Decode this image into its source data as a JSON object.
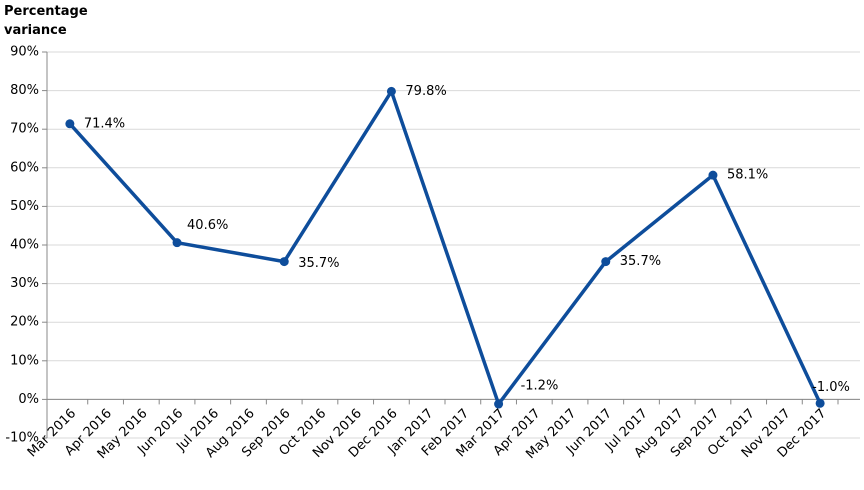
{
  "chart_data": {
    "type": "line",
    "y_label": "Percentage variance",
    "categories": [
      "Mar 2016",
      "Apr 2016",
      "May 2016",
      "Jun 2016",
      "Jul 2016",
      "Aug 2016",
      "Sep 2016",
      "Oct 2016",
      "Nov 2016",
      "Dec 2016",
      "Jan 2017",
      "Feb 2017",
      "Mar 2017",
      "Apr 2017",
      "May 2017",
      "Jun 2017",
      "Jul 2017",
      "Aug 2017",
      "Sep 2017",
      "Oct 2017",
      "Nov 2017",
      "Dec 2017"
    ],
    "series": [
      {
        "color": "#0e4d9b",
        "x": [
          "Mar 2016",
          "Jun 2016",
          "Sep 2016",
          "Dec 2016",
          "Mar 2017",
          "Jun 2017",
          "Sep 2017",
          "Dec 2017"
        ],
        "values": [
          71.4,
          40.6,
          35.7,
          79.8,
          -1.2,
          35.7,
          58.1,
          -1.0
        ],
        "value_labels": [
          "71.4%",
          "40.6%",
          "35.7%",
          "79.8%",
          "-1.2%",
          "35.7%",
          "58.1%",
          "-1.0%"
        ]
      }
    ],
    "ylim": [
      -10,
      90
    ],
    "yticks": [
      {
        "value": -10,
        "label": "-10%"
      },
      {
        "value": 0,
        "label": "0%"
      },
      {
        "value": 10,
        "label": "10%"
      },
      {
        "value": 20,
        "label": "20%"
      },
      {
        "value": 30,
        "label": "30%"
      },
      {
        "value": 40,
        "label": "40%"
      },
      {
        "value": 50,
        "label": "50%"
      },
      {
        "value": 60,
        "label": "60%"
      },
      {
        "value": 70,
        "label": "70%"
      },
      {
        "value": 80,
        "label": "80%"
      },
      {
        "value": 90,
        "label": "90%"
      }
    ],
    "grid": true
  }
}
